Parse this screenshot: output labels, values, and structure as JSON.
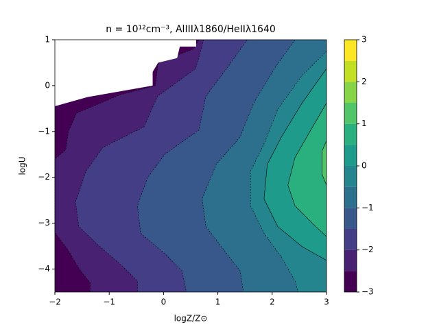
{
  "chart_data": {
    "type": "contour",
    "title": "n = 10¹²cm⁻³, AlIIIλ1860/HeIIλ1640",
    "x_label": "logZ/Z⊙",
    "y_label": "logU",
    "xlim": [
      -2,
      3
    ],
    "ylim": [
      -4.5,
      1
    ],
    "xticks": [
      {
        "value": -2,
        "label": "−2"
      },
      {
        "value": -1,
        "label": "−1"
      },
      0,
      1,
      2,
      3
    ],
    "yticks": [
      {
        "value": -4,
        "label": "−4"
      },
      {
        "value": -3,
        "label": "−3"
      },
      {
        "value": -2,
        "label": "−2"
      },
      {
        "value": -1,
        "label": "−1"
      },
      0,
      1
    ],
    "levels": [
      -3,
      -2.5,
      -2,
      -1.5,
      -1,
      -0.5,
      0,
      0.5,
      1,
      1.5,
      2,
      2.5,
      3
    ],
    "colors": [
      "#440154",
      "#482173",
      "#433e85",
      "#38588c",
      "#2d708e",
      "#25858e",
      "#1e9b8a",
      "#2ab07f",
      "#52c569",
      "#86d549",
      "#c2df23",
      "#fde725"
    ],
    "contours": [
      {
        "level": -2.5,
        "x": [
          0.65,
          0.55,
          -0.1,
          -0.15,
          -0.8,
          -1.6,
          -1.75,
          -1.8,
          -2,
          -2,
          -1.75,
          -1.55,
          -1.35,
          -1.35
        ],
        "y": [
          1,
          0.8,
          0.5,
          0.0,
          -0.2,
          -0.6,
          -1.0,
          -1.4,
          -1.6,
          -3.2,
          -3.6,
          -4.0,
          -4.3,
          -4.5
        ]
      },
      {
        "level": -2,
        "x": [
          0.74,
          0.59,
          -0.11,
          -0.36,
          -1.12,
          -1.43,
          -1.62,
          -1.56,
          -1.24,
          -0.8,
          -0.48,
          -0.48
        ],
        "y": [
          1,
          0.37,
          -0.23,
          -0.9,
          -1.35,
          -1.87,
          -2.54,
          -3.07,
          -3.44,
          -3.89,
          -4.26,
          -4.5
        ]
      },
      {
        "level": -1.5,
        "x": [
          1.54,
          1.16,
          0.78,
          0.65,
          0.02,
          -0.3,
          -0.48,
          -0.42,
          0.02,
          0.34,
          0.42
        ],
        "y": [
          1,
          0.37,
          -0.23,
          -0.97,
          -1.5,
          -2.02,
          -2.62,
          -3.22,
          -3.66,
          -4.04,
          -4.5
        ]
      },
      {
        "level": -1,
        "x": [
          2.42,
          2.04,
          1.66,
          1.41,
          0.97,
          0.71,
          0.78,
          1.16,
          1.41,
          1.47
        ],
        "y": [
          1,
          0.37,
          -0.38,
          -1.12,
          -1.72,
          -2.47,
          -3.07,
          -3.66,
          -4.04,
          -4.5
        ]
      },
      {
        "level": -0.5,
        "x": [
          3,
          2.55,
          2.1,
          1.85,
          1.6,
          1.6,
          1.85,
          2.17,
          2.42,
          2.48
        ],
        "y": [
          0.75,
          0.22,
          -0.52,
          -1.27,
          -1.87,
          -2.62,
          -3.22,
          -3.74,
          -4.26,
          -4.5
        ]
      },
      {
        "level": 0,
        "x": [
          3,
          2.55,
          2.17,
          1.91,
          1.85,
          2.1,
          2.55,
          3
        ],
        "y": [
          0.37,
          -0.38,
          -1.12,
          -1.72,
          -2.47,
          -3.07,
          -3.51,
          -3.81
        ]
      },
      {
        "level": 0.5,
        "x": [
          3,
          2.67,
          2.42,
          2.29,
          2.42,
          2.8,
          3
        ],
        "y": [
          -0.38,
          -1.05,
          -1.57,
          -2.17,
          -2.62,
          -3.07,
          -3.29
        ]
      },
      {
        "level": 1,
        "x": [
          3,
          2.92,
          2.92,
          3
        ],
        "y": [
          -1.2,
          -1.42,
          -1.94,
          -2.17
        ]
      }
    ],
    "mask": {
      "x": [
        -2,
        -2,
        -1.4,
        -0.2,
        -0.2,
        -0.1,
        0.25,
        0.3,
        0.6,
        0.6
      ],
      "y": [
        1,
        -0.45,
        -0.25,
        0,
        0.3,
        0.5,
        0.6,
        0.85,
        0.85,
        1
      ]
    },
    "colorbar_ticks": [
      {
        "value": -3,
        "label": "−3"
      },
      {
        "value": -2,
        "label": "−2"
      },
      {
        "value": -1,
        "label": "−1"
      },
      0,
      1,
      2,
      3
    ]
  }
}
